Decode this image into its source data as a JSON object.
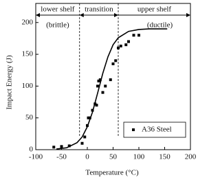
{
  "chart_data": {
    "type": "scatter",
    "xlabel": "Temperature (°C)",
    "ylabel": "Impact Energy (J)",
    "xlim": [
      -100,
      200
    ],
    "xticks": [
      -100,
      -50,
      0,
      50,
      100,
      150,
      200
    ],
    "ylim": [
      0,
      230
    ],
    "yticks": [
      0,
      50,
      100,
      150,
      200
    ],
    "series": [
      {
        "name": "A36 Steel",
        "color": "#000000",
        "x": [
          -65,
          -50,
          -35,
          -10,
          -5,
          0,
          2,
          5,
          10,
          15,
          18,
          20,
          22,
          25,
          30,
          35,
          45,
          50,
          55,
          60,
          65,
          75,
          80,
          90,
          100
        ],
        "values": [
          4,
          5,
          6,
          10,
          20,
          38,
          50,
          50,
          62,
          72,
          70,
          100,
          108,
          110,
          90,
          100,
          110,
          135,
          140,
          160,
          163,
          165,
          170,
          180,
          180
        ]
      }
    ],
    "curve": {
      "color": "#000000",
      "x": [
        -60,
        -40,
        -20,
        -10,
        0,
        10,
        20,
        30,
        40,
        50,
        60,
        80,
        100,
        120,
        155
      ],
      "values": [
        1,
        3,
        11,
        20,
        36,
        59,
        89,
        120,
        146,
        165,
        176,
        186,
        189,
        190,
        190
      ]
    },
    "dividers": [
      -15,
      60
    ],
    "annotations": [
      "lower shelf",
      "(brittle)",
      "transition",
      "upper shelf",
      "(ductile)"
    ],
    "legend": "lower-right"
  }
}
